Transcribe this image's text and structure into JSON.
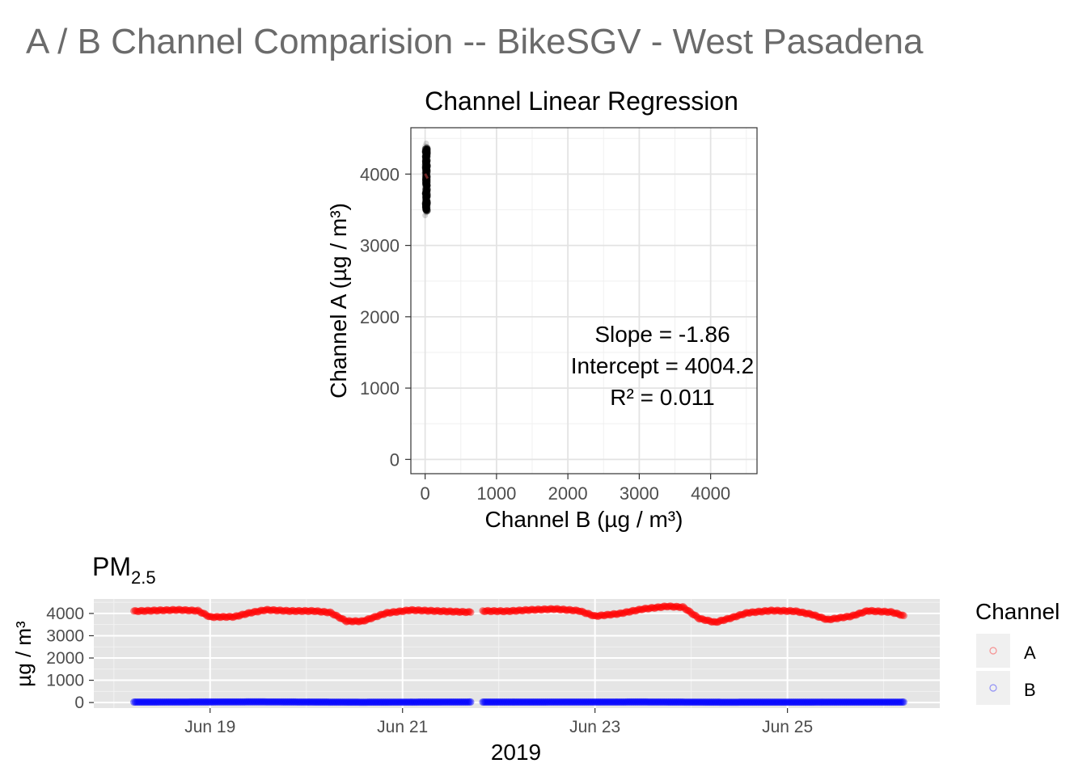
{
  "figure": {
    "title": "A / B Channel Comparision -- BikeSGV - West Pasadena",
    "title_color": "#6b6b6b"
  },
  "chart_data": [
    {
      "type": "scatter",
      "title": "Channel Linear Regression",
      "xlabel": "Channel B (µg / m³)",
      "ylabel": "Channel A (µg / m³)",
      "xlim": [
        -200,
        4650
      ],
      "ylim": [
        -200,
        4650
      ],
      "x_ticks": [
        0,
        1000,
        2000,
        3000,
        4000
      ],
      "y_ticks": [
        0,
        1000,
        2000,
        3000,
        4000
      ],
      "grid": true,
      "background": "#ffffff",
      "point_color": "#000000",
      "fit_color": "#8b2e2e",
      "cluster": {
        "x_range": [
          0,
          35
        ],
        "y_range": [
          3420,
          4430
        ]
      },
      "fit_line": {
        "slope": -1.86,
        "intercept": 4004.2,
        "x_range": [
          0,
          35
        ]
      },
      "annotation": [
        "Slope = -1.86",
        "Intercept = 4004.2",
        "R² = 0.011"
      ]
    },
    {
      "type": "scatter",
      "title": "PM",
      "title_subscript": "2.5",
      "xlabel": "2019",
      "ylabel": "µg / m³",
      "x_start": "2019-06-18T05:00",
      "x_end": "2019-06-26T05:00",
      "xlim": [
        "2019-06-17T19:00",
        "2019-06-26T14:00"
      ],
      "ylim": [
        -250,
        4650
      ],
      "x_ticks": [
        {
          "label": "Jun 19",
          "date": "2019-06-19T00:00"
        },
        {
          "label": "Jun 21",
          "date": "2019-06-21T00:00"
        },
        {
          "label": "Jun 23",
          "date": "2019-06-23T00:00"
        },
        {
          "label": "Jun 25",
          "date": "2019-06-25T00:00"
        }
      ],
      "y_ticks": [
        0,
        1000,
        2000,
        3000,
        4000
      ],
      "background": "#e5e5e5",
      "gap": [
        "2019-06-21T17:00",
        "2019-06-21T20:00"
      ],
      "legend": {
        "title": "Channel",
        "placement": "right",
        "entries": [
          {
            "label": "A",
            "color": "#ff0000"
          },
          {
            "label": "B",
            "color": "#0000ff"
          }
        ]
      },
      "series": [
        {
          "name": "A",
          "color": "#ff0000",
          "points": [
            [
              "2019-06-18T05:00",
              4100
            ],
            [
              "2019-06-18T10:00",
              4130
            ],
            [
              "2019-06-18T16:00",
              4160
            ],
            [
              "2019-06-18T21:00",
              4120
            ],
            [
              "2019-06-19T00:00",
              3840
            ],
            [
              "2019-06-19T06:00",
              3850
            ],
            [
              "2019-06-19T10:00",
              4030
            ],
            [
              "2019-06-19T14:00",
              4160
            ],
            [
              "2019-06-19T20:00",
              4110
            ],
            [
              "2019-06-20T02:00",
              4110
            ],
            [
              "2019-06-20T06:00",
              4040
            ],
            [
              "2019-06-20T10:00",
              3650
            ],
            [
              "2019-06-20T14:00",
              3650
            ],
            [
              "2019-06-20T20:00",
              4020
            ],
            [
              "2019-06-21T02:00",
              4150
            ],
            [
              "2019-06-21T10:00",
              4100
            ],
            [
              "2019-06-21T18:00",
              4050
            ],
            [
              "2019-06-21T20:00",
              4110
            ],
            [
              "2019-06-22T02:00",
              4100
            ],
            [
              "2019-06-22T08:00",
              4160
            ],
            [
              "2019-06-22T14:00",
              4200
            ],
            [
              "2019-06-22T20:00",
              4120
            ],
            [
              "2019-06-23T00:00",
              3880
            ],
            [
              "2019-06-23T06:00",
              3990
            ],
            [
              "2019-06-23T12:00",
              4200
            ],
            [
              "2019-06-23T18:00",
              4320
            ],
            [
              "2019-06-23T22:00",
              4280
            ],
            [
              "2019-06-24T02:00",
              3770
            ],
            [
              "2019-06-24T06:00",
              3600
            ],
            [
              "2019-06-24T10:00",
              3800
            ],
            [
              "2019-06-24T14:00",
              4030
            ],
            [
              "2019-06-24T20:00",
              4130
            ],
            [
              "2019-06-25T02:00",
              4100
            ],
            [
              "2019-06-25T06:00",
              3960
            ],
            [
              "2019-06-25T10:00",
              3720
            ],
            [
              "2019-06-25T16:00",
              3880
            ],
            [
              "2019-06-25T20:00",
              4120
            ],
            [
              "2019-06-26T02:00",
              4060
            ],
            [
              "2019-06-26T05:00",
              3900
            ]
          ]
        },
        {
          "name": "B",
          "color": "#0000ff",
          "points": [
            [
              "2019-06-18T05:00",
              20
            ],
            [
              "2019-06-19T12:00",
              30
            ],
            [
              "2019-06-20T14:00",
              15
            ],
            [
              "2019-06-21T18:00",
              25
            ],
            [
              "2019-06-21T20:00",
              20
            ],
            [
              "2019-06-23T12:00",
              25
            ],
            [
              "2019-06-24T08:00",
              15
            ],
            [
              "2019-06-26T05:00",
              20
            ]
          ]
        }
      ]
    }
  ]
}
